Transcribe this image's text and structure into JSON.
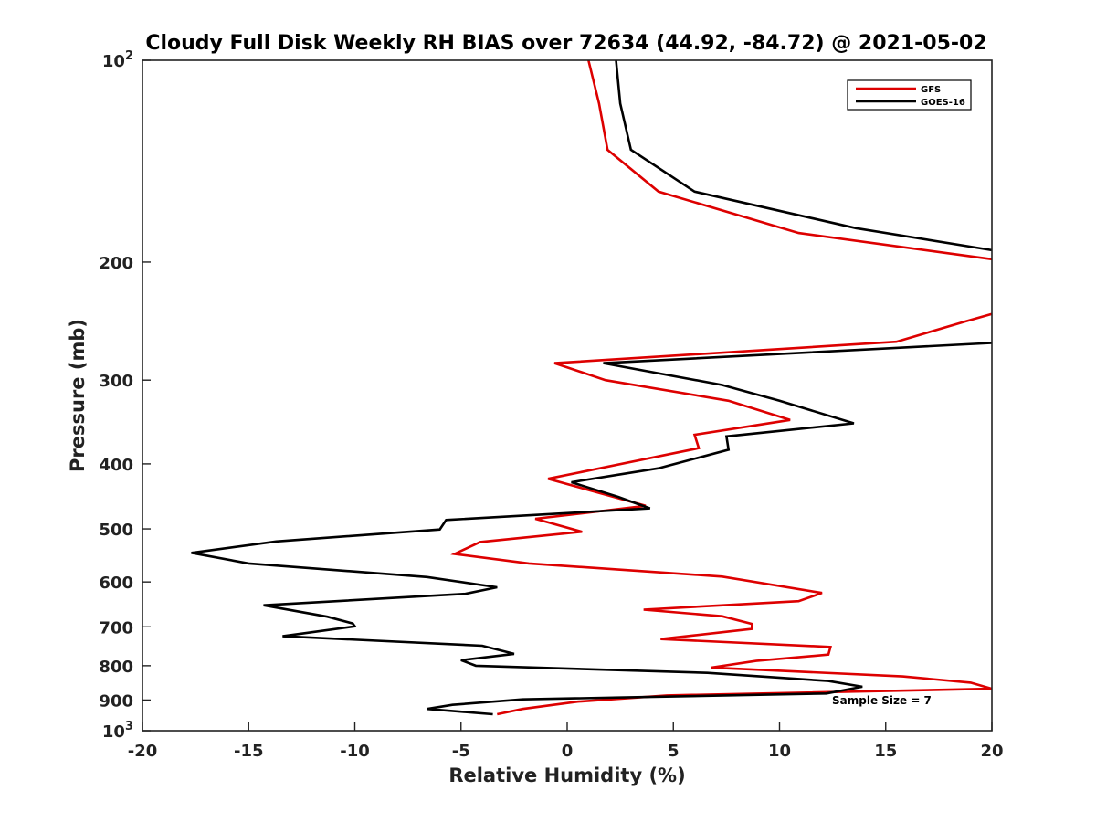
{
  "chart_data": {
    "type": "line",
    "title": "Cloudy Full Disk Weekly RH BIAS over 72634 (44.92, -84.72) @ 2021-05-02",
    "xlabel": "Relative Humidity (%)",
    "ylabel": "Pressure (mb)",
    "xlim": [
      -20,
      20
    ],
    "ylim": [
      100,
      1000
    ],
    "y_scale": "log",
    "y_reversed": true,
    "grid": false,
    "legend_position": "top-right",
    "x_ticks": [
      {
        "value": -20,
        "label": "-20"
      },
      {
        "value": -15,
        "label": "-15"
      },
      {
        "value": -10,
        "label": "-10"
      },
      {
        "value": -5,
        "label": "-5"
      },
      {
        "value": 0,
        "label": "0"
      },
      {
        "value": 5,
        "label": "5"
      },
      {
        "value": 10,
        "label": "10"
      },
      {
        "value": 15,
        "label": "15"
      },
      {
        "value": 20,
        "label": "20"
      }
    ],
    "y_ticks": [
      {
        "value": 100,
        "base": "10",
        "exp": "2"
      },
      {
        "value": 200,
        "label": "200"
      },
      {
        "value": 300,
        "label": "300"
      },
      {
        "value": 400,
        "label": "400"
      },
      {
        "value": 500,
        "label": "500"
      },
      {
        "value": 600,
        "label": "600"
      },
      {
        "value": 700,
        "label": "700"
      },
      {
        "value": 800,
        "label": "800"
      },
      {
        "value": 900,
        "label": "900"
      },
      {
        "value": 1000,
        "base": "10",
        "exp": "3"
      }
    ],
    "annotation": "Sample Size = 7",
    "series": [
      {
        "name": "GFS",
        "color": "#dd0000",
        "segments": [
          [
            [
              1.0,
              100
            ],
            [
              1.5,
              116
            ],
            [
              1.9,
              136
            ],
            [
              4.3,
              157
            ],
            [
              10.9,
              181
            ],
            [
              20.0,
              198
            ]
          ],
          [
            [
              20.0,
              239
            ],
            [
              18.8,
              245
            ],
            [
              15.5,
              263
            ],
            [
              -0.6,
              283
            ],
            [
              1.8,
              300
            ],
            [
              7.6,
              322
            ],
            [
              10.5,
              344
            ],
            [
              6.0,
              362
            ],
            [
              6.2,
              379
            ],
            [
              -0.9,
              421
            ],
            [
              3.7,
              462
            ],
            [
              -1.5,
              483
            ],
            [
              0.7,
              505
            ],
            [
              -4.1,
              523
            ],
            [
              -5.3,
              545
            ],
            [
              -1.8,
              563
            ],
            [
              7.3,
              589
            ],
            [
              12.0,
              623
            ],
            [
              10.9,
              641
            ],
            [
              3.6,
              660
            ],
            [
              7.3,
              675
            ],
            [
              8.7,
              693
            ],
            [
              8.7,
              705
            ],
            [
              4.4,
              730
            ],
            [
              12.4,
              750
            ],
            [
              12.3,
              770
            ],
            [
              8.9,
              787
            ],
            [
              6.8,
              805
            ],
            [
              15.8,
              830
            ],
            [
              19.0,
              848
            ],
            [
              20.0,
              866
            ],
            [
              4.7,
              886
            ],
            [
              0.5,
              905
            ],
            [
              -2.1,
              928
            ],
            [
              -3.3,
              945
            ]
          ]
        ]
      },
      {
        "name": "GOES-16",
        "color": "#000000",
        "segments": [
          [
            [
              2.3,
              100
            ],
            [
              2.5,
              116
            ],
            [
              3.0,
              136
            ],
            [
              6.0,
              157
            ],
            [
              13.6,
              178
            ],
            [
              20.0,
              192
            ]
          ],
          [
            [
              20.0,
              264
            ],
            [
              1.7,
              283
            ],
            [
              7.3,
              305
            ],
            [
              10.0,
              322
            ],
            [
              13.5,
              348
            ],
            [
              7.5,
              364
            ],
            [
              7.6,
              381
            ],
            [
              4.3,
              406
            ],
            [
              0.2,
              426
            ],
            [
              2.4,
              448
            ],
            [
              3.9,
              466
            ],
            [
              -5.7,
              485
            ],
            [
              -6.0,
              501
            ],
            [
              -13.7,
              522
            ],
            [
              -17.7,
              543
            ],
            [
              -15.0,
              563
            ],
            [
              -6.6,
              590
            ],
            [
              -3.3,
              611
            ],
            [
              -4.8,
              625
            ],
            [
              -14.3,
              650
            ],
            [
              -11.3,
              676
            ],
            [
              -10.1,
              692
            ],
            [
              -10.0,
              699
            ],
            [
              -13.4,
              723
            ],
            [
              -4.0,
              747
            ],
            [
              -2.5,
              768
            ],
            [
              -5.0,
              785
            ],
            [
              -4.3,
              800
            ],
            [
              6.6,
              820
            ],
            [
              12.3,
              843
            ],
            [
              13.9,
              860
            ],
            [
              12.2,
              880
            ],
            [
              -2.1,
              898
            ],
            [
              -5.4,
              915
            ],
            [
              -6.6,
              928
            ],
            [
              -3.5,
              945
            ]
          ]
        ]
      }
    ]
  }
}
